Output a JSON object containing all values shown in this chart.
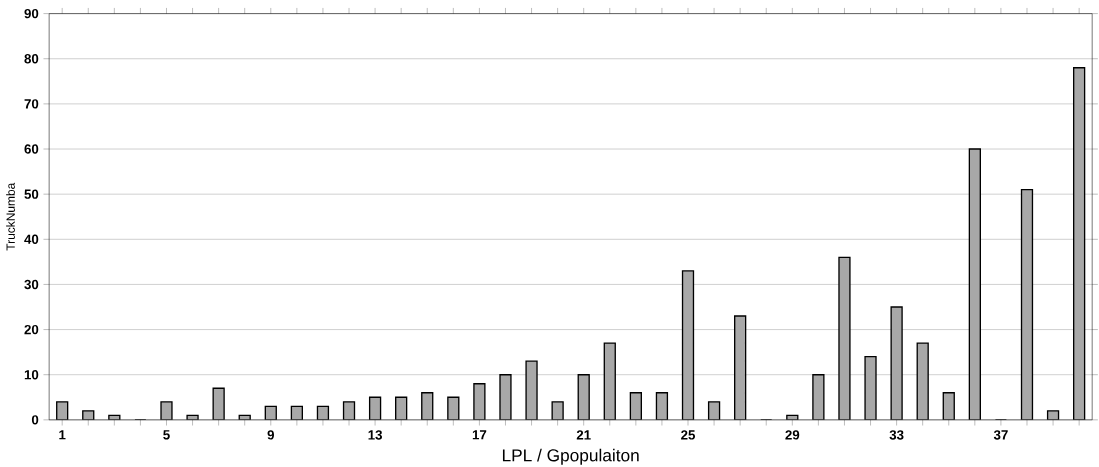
{
  "chart_data": {
    "type": "bar",
    "xlabel": "LPL / Gpopulaiton",
    "ylabel": "TruckNumba",
    "categories": [
      "1",
      null,
      null,
      null,
      "5",
      null,
      null,
      null,
      "9",
      null,
      null,
      null,
      "13",
      null,
      null,
      null,
      "17",
      null,
      null,
      null,
      "21",
      null,
      null,
      null,
      "25",
      null,
      null,
      null,
      "29",
      null,
      null,
      null,
      "33",
      null,
      null,
      null,
      "37",
      null,
      null,
      null
    ],
    "values": [
      4,
      2,
      1,
      0,
      4,
      1,
      7,
      1,
      3,
      3,
      3,
      4,
      5,
      5,
      6,
      5,
      8,
      10,
      13,
      4,
      10,
      17,
      6,
      6,
      33,
      4,
      23,
      0,
      1,
      10,
      36,
      14,
      25,
      17,
      6,
      60,
      0,
      51,
      2,
      78
    ],
    "color": "#a8a8a8",
    "ylim": [
      0,
      90
    ],
    "yticks": [
      0,
      10,
      20,
      30,
      40,
      50,
      60,
      70,
      80,
      90
    ],
    "grid": "y"
  }
}
